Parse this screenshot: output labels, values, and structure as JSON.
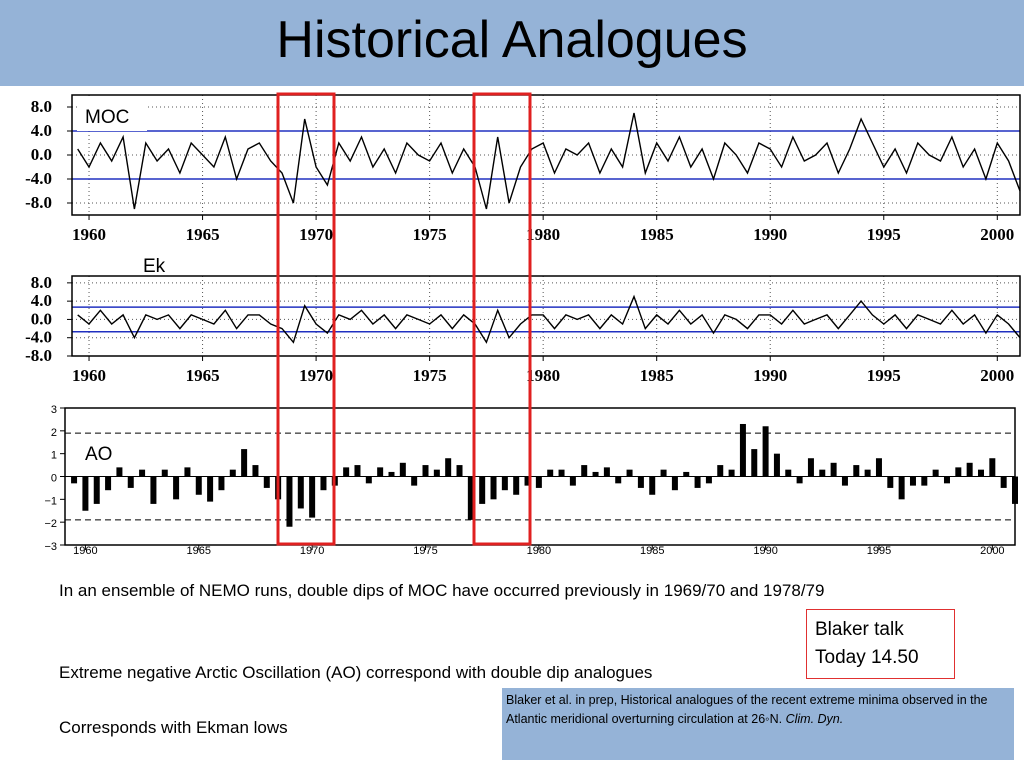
{
  "slide": {
    "title": "Historical Analogues",
    "paragraphs": [
      "In an ensemble of NEMO runs, double dips of MOC have occurred previously in 1969/70 and 1978/79",
      "Extreme negative Arctic Oscillation (AO) correspond with double dip analogues",
      "Corresponds with Ekman lows"
    ],
    "callout": [
      "Blaker talk",
      "Today 14.50"
    ],
    "citation": {
      "text": "Blaker et al. in prep, Historical analogues of the recent extreme minima observed in the Atlantic meridional overturning circulation at 26◦N. ",
      "journal": "Clim. Dyn."
    }
  },
  "chart_data": [
    {
      "type": "line",
      "label": "MOC",
      "color": "#000000",
      "hline_color": "#2030c0",
      "grid": true,
      "hlines": [
        4,
        -4
      ],
      "xlim": [
        1959.25,
        2001
      ],
      "ylim": [
        -10,
        10
      ],
      "xticks": [
        1960,
        1965,
        1970,
        1975,
        1980,
        1985,
        1990,
        1995,
        2000
      ],
      "yticks": [
        {
          "value": 8,
          "label": "8.0"
        },
        {
          "value": 4,
          "label": "4.0"
        },
        {
          "value": 0,
          "label": "0.0"
        },
        {
          "value": -4,
          "label": "-4.0"
        },
        {
          "value": -8,
          "label": "-8.0"
        }
      ],
      "x": [
        1959.5,
        1960,
        1960.5,
        1961,
        1961.5,
        1962,
        1962.5,
        1963,
        1963.5,
        1964,
        1964.5,
        1965,
        1965.5,
        1966,
        1966.5,
        1967,
        1967.5,
        1968,
        1968.5,
        1969,
        1969.5,
        1970,
        1970.5,
        1971,
        1971.5,
        1972,
        1972.5,
        1973,
        1973.5,
        1974,
        1974.5,
        1975,
        1975.5,
        1976,
        1976.5,
        1977,
        1977.5,
        1978,
        1978.5,
        1979,
        1979.5,
        1980,
        1980.5,
        1981,
        1981.5,
        1982,
        1982.5,
        1983,
        1983.5,
        1984,
        1984.5,
        1985,
        1985.5,
        1986,
        1986.5,
        1987,
        1987.5,
        1988,
        1988.5,
        1989,
        1989.5,
        1990,
        1990.5,
        1991,
        1991.5,
        1992,
        1992.5,
        1993,
        1993.5,
        1994,
        1994.5,
        1995,
        1995.5,
        1996,
        1996.5,
        1997,
        1997.5,
        1998,
        1998.5,
        1999,
        1999.5,
        2000,
        2000.5,
        2001
      ],
      "values": [
        1,
        -2,
        2,
        -1,
        3,
        -9,
        2,
        -1,
        1,
        -3,
        2,
        0,
        -2,
        3,
        -4,
        1,
        2,
        -1,
        -3,
        -8,
        6,
        -2,
        -5,
        2,
        -1,
        3,
        -2,
        1,
        -3,
        2,
        0,
        -1,
        2,
        -3,
        1,
        -2,
        -9,
        3,
        -8,
        -2,
        1,
        2,
        -3,
        1,
        0,
        2,
        -3,
        1,
        -2,
        7,
        -3,
        2,
        -1,
        3,
        -2,
        1,
        -4,
        2,
        0,
        -3,
        2,
        1,
        -2,
        3,
        -1,
        0,
        2,
        -3,
        1,
        6,
        2,
        -2,
        1,
        -3,
        2,
        0,
        -1,
        3,
        -2,
        1,
        -4,
        2,
        -1,
        -6
      ]
    },
    {
      "type": "line",
      "label": "Ek",
      "color": "#000000",
      "hline_color": "#2030c0",
      "grid": true,
      "hlines": [
        2.7,
        -2.7
      ],
      "xlim": [
        1959.25,
        2001
      ],
      "ylim": [
        -8,
        9.5
      ],
      "xticks": [
        1960,
        1965,
        1970,
        1975,
        1980,
        1985,
        1990,
        1995,
        2000
      ],
      "yticks": [
        {
          "value": 8,
          "label": "8.0"
        },
        {
          "value": 4,
          "label": "4.0"
        },
        {
          "value": 0,
          "label": "0.0"
        },
        {
          "value": -4,
          "label": "-4.0"
        },
        {
          "value": -8,
          "label": "-8.0"
        }
      ],
      "x": [
        1959.5,
        1960,
        1960.5,
        1961,
        1961.5,
        1962,
        1962.5,
        1963,
        1963.5,
        1964,
        1964.5,
        1965,
        1965.5,
        1966,
        1966.5,
        1967,
        1967.5,
        1968,
        1968.5,
        1969,
        1969.5,
        1970,
        1970.5,
        1971,
        1971.5,
        1972,
        1972.5,
        1973,
        1973.5,
        1974,
        1974.5,
        1975,
        1975.5,
        1976,
        1976.5,
        1977,
        1977.5,
        1978,
        1978.5,
        1979,
        1979.5,
        1980,
        1980.5,
        1981,
        1981.5,
        1982,
        1982.5,
        1983,
        1983.5,
        1984,
        1984.5,
        1985,
        1985.5,
        1986,
        1986.5,
        1987,
        1987.5,
        1988,
        1988.5,
        1989,
        1989.5,
        1990,
        1990.5,
        1991,
        1991.5,
        1992,
        1992.5,
        1993,
        1993.5,
        1994,
        1994.5,
        1995,
        1995.5,
        1996,
        1996.5,
        1997,
        1997.5,
        1998,
        1998.5,
        1999,
        1999.5,
        2000,
        2000.5,
        2001
      ],
      "values": [
        1,
        -1,
        2,
        -1,
        1,
        -4,
        1,
        0,
        1,
        -2,
        1,
        0,
        -1,
        2,
        -2,
        1,
        1,
        -1,
        -2,
        -5,
        3,
        -1,
        -3,
        1,
        0,
        2,
        -1,
        1,
        -2,
        1,
        0,
        -1,
        1,
        -2,
        1,
        -1,
        -5,
        2,
        -4,
        -1,
        1,
        1,
        -2,
        1,
        0,
        1,
        -2,
        1,
        -1,
        5,
        -2,
        1,
        -1,
        2,
        -1,
        1,
        -3,
        1,
        0,
        -2,
        1,
        1,
        -1,
        2,
        -1,
        0,
        1,
        -2,
        1,
        4,
        1,
        -1,
        1,
        -2,
        1,
        0,
        -1,
        2,
        -1,
        1,
        -3,
        1,
        -1,
        -4
      ]
    },
    {
      "type": "bar",
      "label": "AO",
      "color": "#000000",
      "hline_color": "#000000",
      "grid": false,
      "hlines": [
        1.9,
        -1.9
      ],
      "xlim": [
        1959.1,
        2001
      ],
      "ylim": [
        -3,
        3
      ],
      "xticks": [
        1960,
        1965,
        1970,
        1975,
        1980,
        1985,
        1990,
        1995,
        2000
      ],
      "yticks": [
        {
          "value": -3,
          "label": "−3"
        },
        {
          "value": -2,
          "label": "−2"
        },
        {
          "value": -1,
          "label": "−1"
        },
        0,
        1,
        2,
        3
      ],
      "x": [
        1959.5,
        1960,
        1960.5,
        1961,
        1961.5,
        1962,
        1962.5,
        1963,
        1963.5,
        1964,
        1964.5,
        1965,
        1965.5,
        1966,
        1966.5,
        1967,
        1967.5,
        1968,
        1968.5,
        1969,
        1969.5,
        1970,
        1970.5,
        1971,
        1971.5,
        1972,
        1972.5,
        1973,
        1973.5,
        1974,
        1974.5,
        1975,
        1975.5,
        1976,
        1976.5,
        1977,
        1977.5,
        1978,
        1978.5,
        1979,
        1979.5,
        1980,
        1980.5,
        1981,
        1981.5,
        1982,
        1982.5,
        1983,
        1983.5,
        1984,
        1984.5,
        1985,
        1985.5,
        1986,
        1986.5,
        1987,
        1987.5,
        1988,
        1988.5,
        1989,
        1989.5,
        1990,
        1990.5,
        1991,
        1991.5,
        1992,
        1992.5,
        1993,
        1993.5,
        1994,
        1994.5,
        1995,
        1995.5,
        1996,
        1996.5,
        1997,
        1997.5,
        1998,
        1998.5,
        1999,
        1999.5,
        2000,
        2000.5,
        2001
      ],
      "values": [
        -0.3,
        -1.5,
        -1.2,
        -0.6,
        0.4,
        -0.5,
        0.3,
        -1.2,
        0.3,
        -1.0,
        0.4,
        -0.8,
        -1.1,
        -0.6,
        0.3,
        1.2,
        0.5,
        -0.5,
        -1.0,
        -2.2,
        -1.4,
        -1.8,
        -0.6,
        -0.4,
        0.4,
        0.5,
        -0.3,
        0.4,
        0.2,
        0.6,
        -0.4,
        0.5,
        0.3,
        0.8,
        0.5,
        -1.9,
        -1.2,
        -1.0,
        -0.6,
        -0.8,
        -0.4,
        -0.5,
        0.3,
        0.3,
        -0.4,
        0.5,
        0.2,
        0.4,
        -0.3,
        0.3,
        -0.5,
        -0.8,
        0.3,
        -0.6,
        0.2,
        -0.5,
        -0.3,
        0.5,
        0.3,
        2.3,
        1.2,
        2.2,
        1.0,
        0.3,
        -0.3,
        0.8,
        0.3,
        0.6,
        -0.4,
        0.5,
        0.3,
        0.8,
        -0.5,
        -1.0,
        -0.4,
        -0.4,
        0.3,
        -0.3,
        0.4,
        0.6,
        0.3,
        0.8,
        -0.5,
        -1.2
      ]
    }
  ]
}
